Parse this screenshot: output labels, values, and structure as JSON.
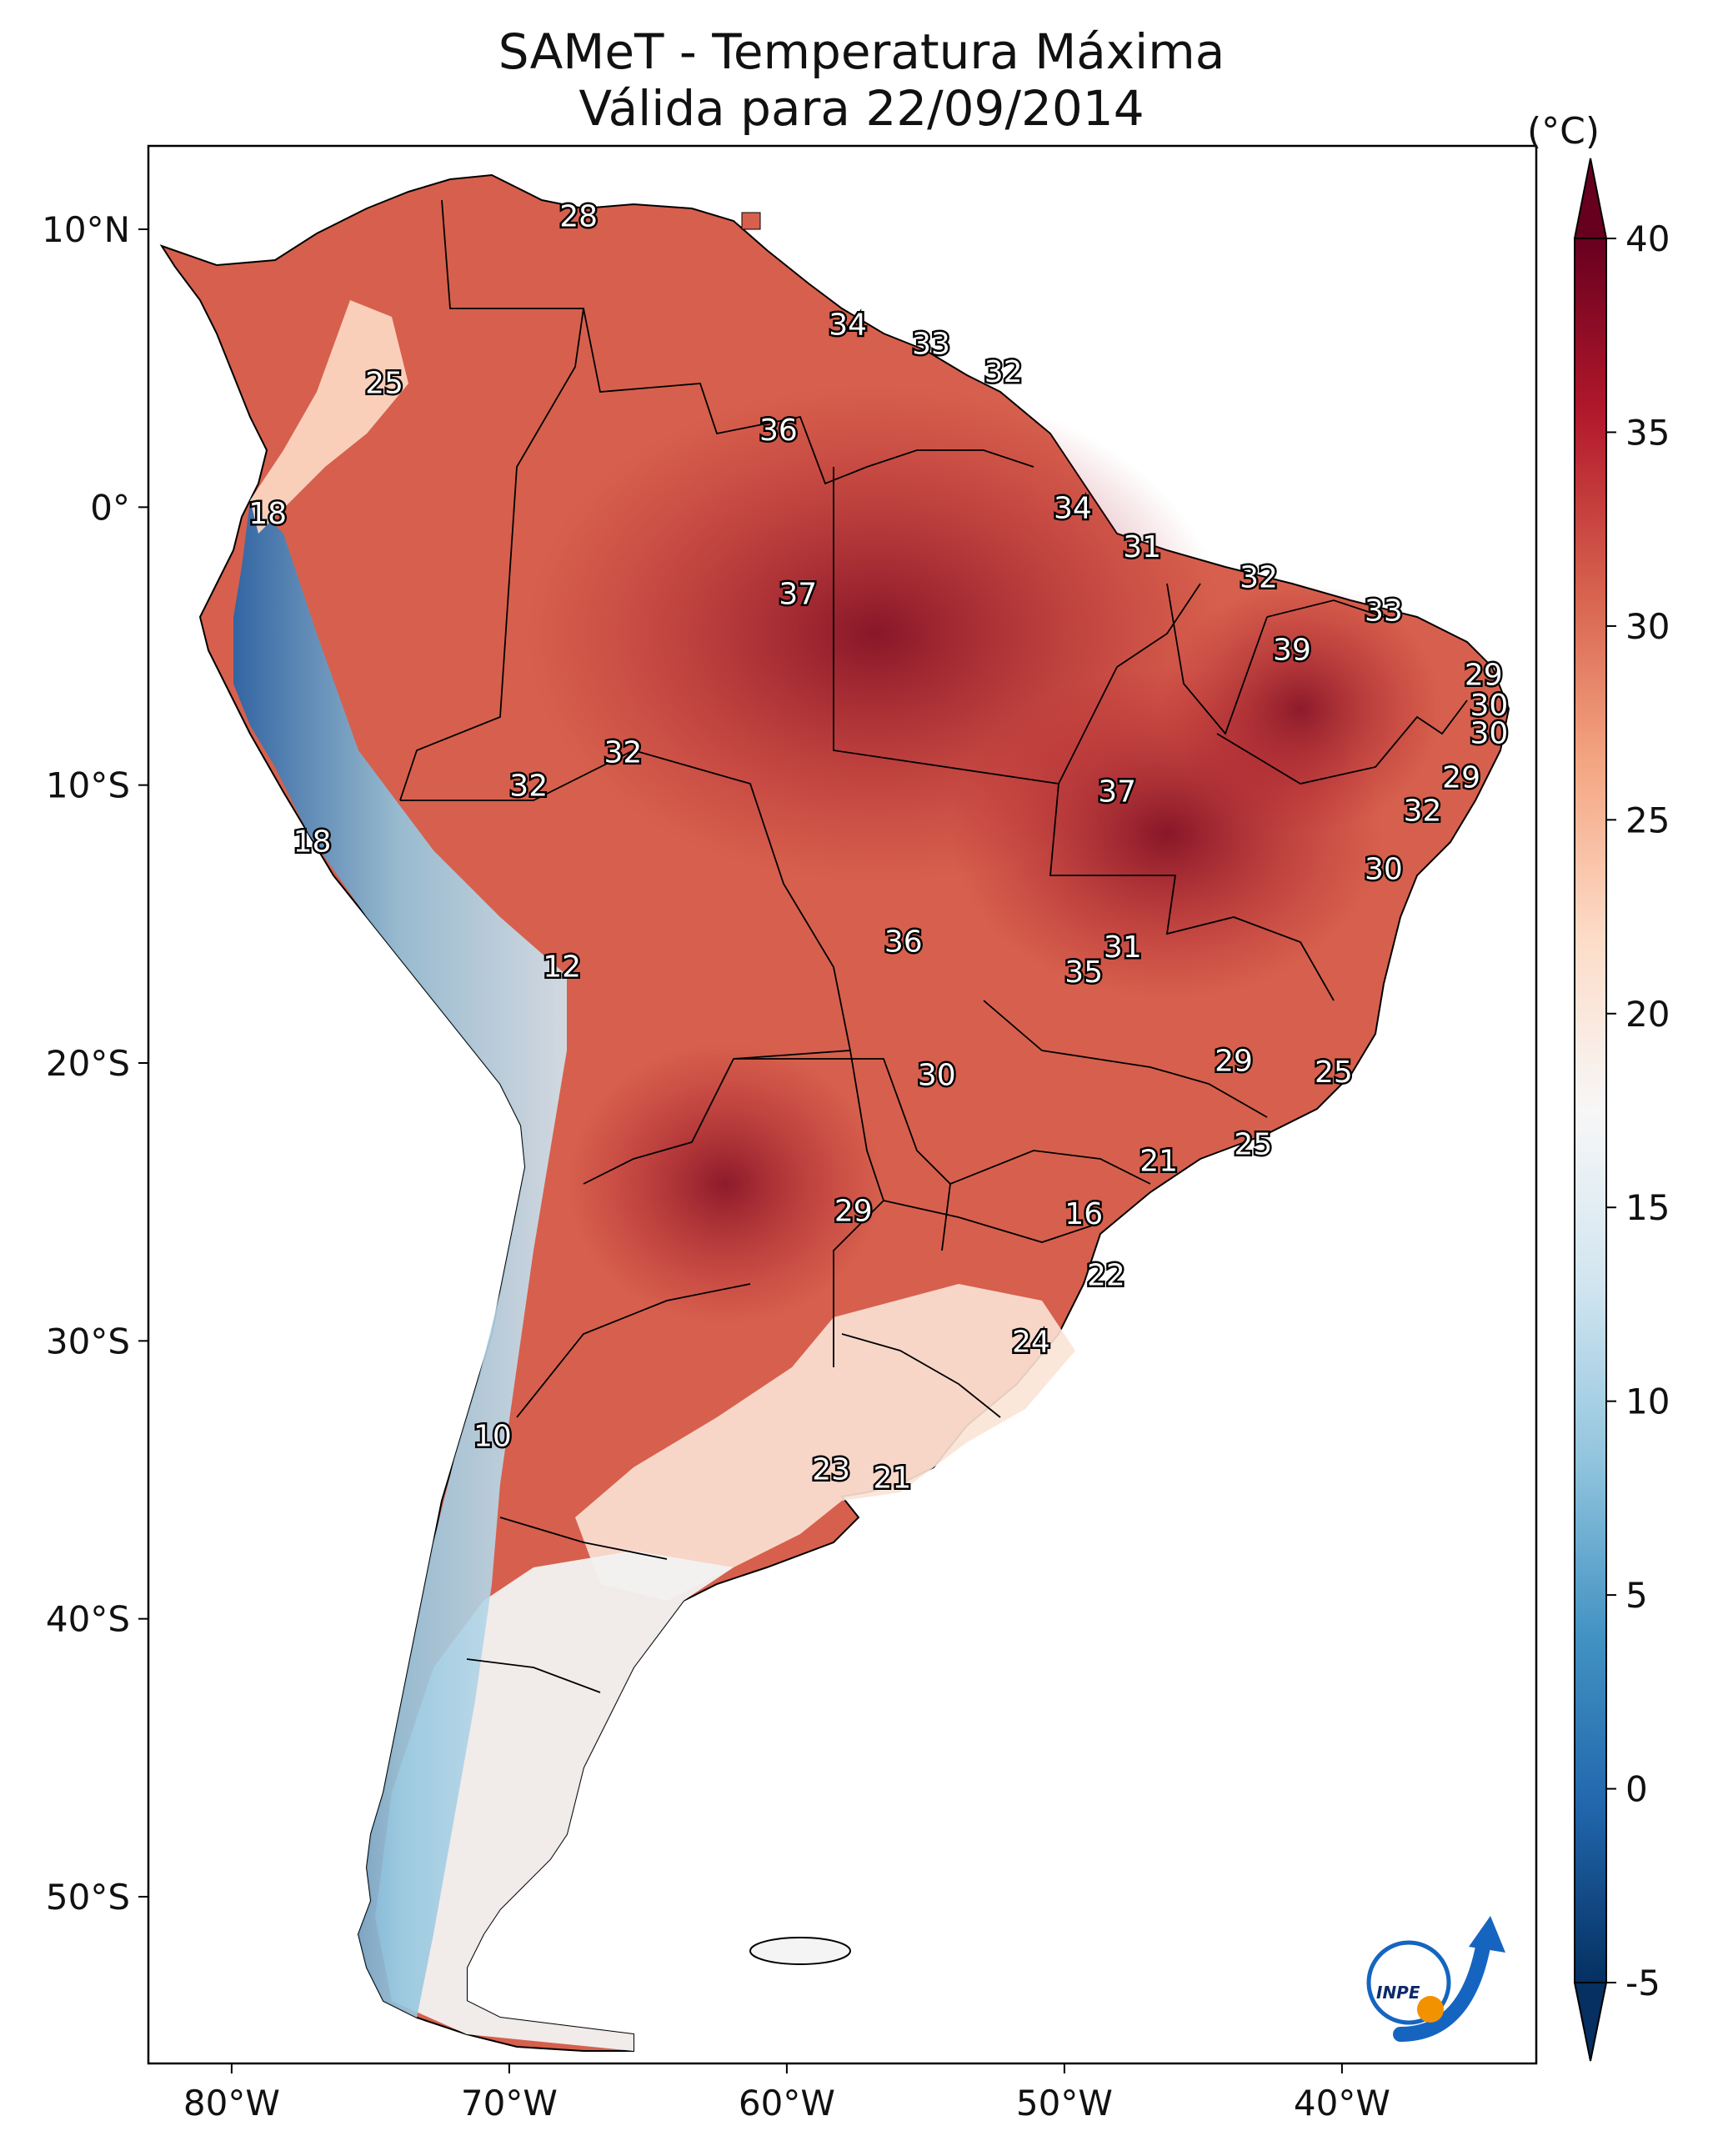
{
  "title": {
    "line1": "SAMeT - Temperatura Máxima",
    "line2": "Válida para 22/09/2014"
  },
  "axes": {
    "lon_ticks": [
      "80°W",
      "70°W",
      "60°W",
      "50°W",
      "40°W"
    ],
    "lat_ticks": [
      "10°N",
      "0°",
      "10°S",
      "20°S",
      "30°S",
      "40°S",
      "50°S"
    ],
    "lon_range": [
      -83,
      -33
    ],
    "lat_range": [
      -56,
      13
    ]
  },
  "colorbar": {
    "unit": "(°C)",
    "ticks": [
      "40",
      "35",
      "30",
      "25",
      "20",
      "15",
      "10",
      "5",
      "0",
      "-5"
    ],
    "range": [
      -5,
      40
    ],
    "palette": [
      "#053061",
      "#2166ac",
      "#4393c3",
      "#92c5de",
      "#d1e5f0",
      "#f7f7f7",
      "#fddbc7",
      "#f4a582",
      "#d6604d",
      "#b2182b",
      "#67001f"
    ]
  },
  "stations": [
    {
      "label": "28",
      "lon": -67.5,
      "lat": 10.5
    },
    {
      "label": "34",
      "lon": -57.8,
      "lon_note": "",
      "lat": 6.6
    },
    {
      "label": "33",
      "lon": -54.8,
      "lat": 5.9
    },
    {
      "label": "32",
      "lon": -52.2,
      "lat": 4.9
    },
    {
      "label": "25",
      "lon": -74.5,
      "lat": 4.5
    },
    {
      "label": "36",
      "lon": -60.3,
      "lat": 2.8
    },
    {
      "label": "34",
      "lon": -49.7,
      "lat": 0.0
    },
    {
      "label": "18",
      "lon": -78.7,
      "lat": -0.2
    },
    {
      "label": "31",
      "lon": -47.2,
      "lat": -1.4
    },
    {
      "label": "32",
      "lon": -43.0,
      "lat": -2.5
    },
    {
      "label": "37",
      "lon": -59.6,
      "lat": -3.1
    },
    {
      "label": "33",
      "lon": -38.5,
      "lat": -3.7
    },
    {
      "label": "39",
      "lon": -41.8,
      "lat": -5.1
    },
    {
      "label": "29",
      "lon": -34.9,
      "lat": -6.0
    },
    {
      "label": "30",
      "lon": -34.7,
      "lat": -7.1
    },
    {
      "label": "30",
      "lon": -34.7,
      "lat": -8.1
    },
    {
      "label": "32",
      "lon": -65.9,
      "lat": -8.8
    },
    {
      "label": "32",
      "lon": -69.3,
      "lat": -10.0
    },
    {
      "label": "29",
      "lon": -35.7,
      "lat": -9.7
    },
    {
      "label": "37",
      "lon": -48.1,
      "lat": -10.2
    },
    {
      "label": "32",
      "lon": -37.1,
      "lat": -10.9
    },
    {
      "label": "18",
      "lon": -77.1,
      "lat": -12.0
    },
    {
      "label": "30",
      "lon": -38.5,
      "lat": -13.0
    },
    {
      "label": "36",
      "lon": -55.8,
      "lat": -15.6
    },
    {
      "label": "31",
      "lon": -47.9,
      "lat": -15.8
    },
    {
      "label": "35",
      "lon": -49.3,
      "lat": -16.7
    },
    {
      "label": "12",
      "lon": -68.1,
      "lat": -16.5
    },
    {
      "label": "29",
      "lon": -43.9,
      "lat": -19.9
    },
    {
      "label": "25",
      "lon": -40.3,
      "lat": -20.3
    },
    {
      "label": "30",
      "lon": -54.6,
      "lat": -20.4
    },
    {
      "label": "25",
      "lon": -43.2,
      "lat": -22.9
    },
    {
      "label": "21",
      "lon": -46.6,
      "lat": -23.5
    },
    {
      "label": "29",
      "lon": -57.6,
      "lat": -25.3
    },
    {
      "label": "16",
      "lon": -49.3,
      "lat": -25.4
    },
    {
      "label": "22",
      "lon": -48.5,
      "lat": -27.6
    },
    {
      "label": "24",
      "lon": -51.2,
      "lat": -30.0
    },
    {
      "label": "10",
      "lon": -70.6,
      "lat": -33.4
    },
    {
      "label": "23",
      "lon": -58.4,
      "lat": -34.6
    },
    {
      "label": "21",
      "lon": -56.2,
      "lat": -34.9
    }
  ],
  "logo": {
    "text": "INPE"
  }
}
